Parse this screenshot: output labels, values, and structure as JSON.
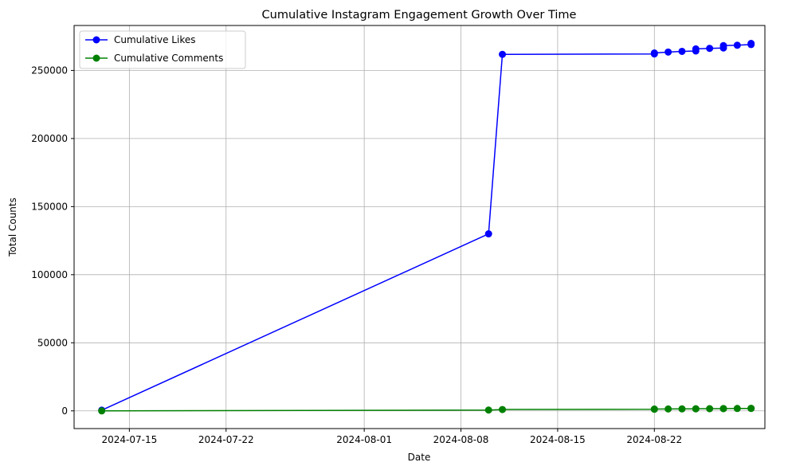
{
  "chart_data": {
    "type": "line",
    "title": "Cumulative Instagram Engagement Growth Over Time",
    "xlabel": "Date",
    "ylabel": "Total Counts",
    "x_type": "date",
    "xlim": [
      "2024-07-11",
      "2024-08-30"
    ],
    "ylim": [
      -13000,
      283000
    ],
    "x_ticks": [
      "2024-07-15",
      "2024-07-22",
      "2024-08-01",
      "2024-08-08",
      "2024-08-15",
      "2024-08-22"
    ],
    "y_ticks": [
      0,
      50000,
      100000,
      150000,
      200000,
      250000
    ],
    "grid": true,
    "legend_position": "upper-left",
    "series": [
      {
        "name": "Cumulative Likes",
        "color": "#0000ff",
        "marker": "circle",
        "x": [
          "2024-07-13",
          "2024-08-10",
          "2024-08-11",
          "2024-08-22",
          "2024-08-22",
          "2024-08-23",
          "2024-08-24",
          "2024-08-25",
          "2024-08-25",
          "2024-08-26",
          "2024-08-27",
          "2024-08-27",
          "2024-08-28",
          "2024-08-29",
          "2024-08-29"
        ],
        "y": [
          500,
          130000,
          261800,
          262100,
          262800,
          263500,
          264000,
          264300,
          265800,
          266200,
          266500,
          268200,
          268500,
          269000,
          269800
        ]
      },
      {
        "name": "Cumulative Comments",
        "color": "#008000",
        "marker": "circle",
        "x": [
          "2024-07-13",
          "2024-08-10",
          "2024-08-11",
          "2024-08-22",
          "2024-08-22",
          "2024-08-23",
          "2024-08-24",
          "2024-08-25",
          "2024-08-25",
          "2024-08-26",
          "2024-08-27",
          "2024-08-27",
          "2024-08-28",
          "2024-08-29",
          "2024-08-29"
        ],
        "y": [
          0,
          600,
          1000,
          1200,
          1300,
          1400,
          1450,
          1500,
          1550,
          1600,
          1650,
          1700,
          1750,
          1800,
          1850
        ]
      }
    ]
  }
}
